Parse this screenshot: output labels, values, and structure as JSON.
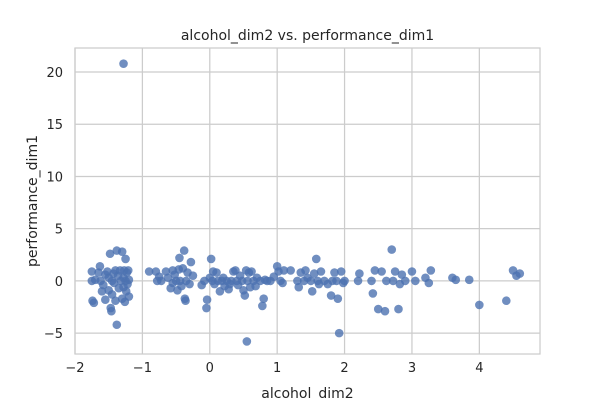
{
  "chart_data": {
    "type": "scatter",
    "title": "alcohol_dim2 vs. performance_dim1",
    "xlabel": "alcohol_dim2",
    "ylabel": "performance_dim1",
    "xlim": [
      -2.0,
      4.9
    ],
    "ylim": [
      -7.0,
      22.3
    ],
    "xticks": [
      -2,
      -1,
      0,
      1,
      2,
      3,
      4
    ],
    "xtick_labels": [
      "−2",
      "−1",
      "0",
      "1",
      "2",
      "3",
      "4"
    ],
    "yticks": [
      -5,
      0,
      5,
      10,
      15,
      20
    ],
    "ytick_labels": [
      "−5",
      "0",
      "5",
      "10",
      "15",
      "20"
    ],
    "grid": true,
    "point_color": "#4c72b0",
    "points": [
      [
        -1.28,
        20.8
      ],
      [
        -1.75,
        0.9
      ],
      [
        -1.75,
        0.0
      ],
      [
        -1.74,
        -1.9
      ],
      [
        -1.72,
        -2.1
      ],
      [
        -1.7,
        0.1
      ],
      [
        -1.65,
        0.8
      ],
      [
        -1.63,
        1.4
      ],
      [
        -1.62,
        0.0
      ],
      [
        -1.6,
        -1.0
      ],
      [
        -1.58,
        -0.4
      ],
      [
        -1.55,
        0.6
      ],
      [
        -1.55,
        -1.8
      ],
      [
        -1.52,
        0.9
      ],
      [
        -1.5,
        0.3
      ],
      [
        -1.5,
        -0.9
      ],
      [
        -1.48,
        2.6
      ],
      [
        -1.47,
        -2.6
      ],
      [
        -1.46,
        -2.9
      ],
      [
        -1.45,
        0.0
      ],
      [
        -1.45,
        -1.3
      ],
      [
        -1.43,
        0.7
      ],
      [
        -1.42,
        -0.2
      ],
      [
        -1.4,
        1.0
      ],
      [
        -1.4,
        -1.9
      ],
      [
        -1.38,
        2.9
      ],
      [
        -1.38,
        -4.2
      ],
      [
        -1.36,
        0.5
      ],
      [
        -1.35,
        -0.7
      ],
      [
        -1.33,
        1.0
      ],
      [
        -1.32,
        0.0
      ],
      [
        -1.3,
        -1.7
      ],
      [
        -1.3,
        2.8
      ],
      [
        -1.28,
        0.3
      ],
      [
        -1.28,
        -0.6
      ],
      [
        -1.27,
        1.0
      ],
      [
        -1.26,
        -2.0
      ],
      [
        -1.25,
        0.0
      ],
      [
        -1.25,
        2.1
      ],
      [
        -1.24,
        -1.0
      ],
      [
        -1.23,
        0.8
      ],
      [
        -1.22,
        -0.3
      ],
      [
        -1.21,
        1.0
      ],
      [
        -1.2,
        -1.5
      ],
      [
        -1.2,
        0.1
      ],
      [
        -0.9,
        0.9
      ],
      [
        -0.8,
        0.9
      ],
      [
        -0.78,
        0.0
      ],
      [
        -0.75,
        0.4
      ],
      [
        -0.72,
        0.0
      ],
      [
        -0.65,
        0.9
      ],
      [
        -0.62,
        0.3
      ],
      [
        -0.58,
        -0.7
      ],
      [
        -0.55,
        1.0
      ],
      [
        -0.55,
        -0.2
      ],
      [
        -0.52,
        0.6
      ],
      [
        -0.5,
        0.0
      ],
      [
        -0.48,
        -0.9
      ],
      [
        -0.46,
        1.1
      ],
      [
        -0.45,
        2.2
      ],
      [
        -0.44,
        0.0
      ],
      [
        -0.42,
        -0.5
      ],
      [
        -0.4,
        1.2
      ],
      [
        -0.38,
        2.9
      ],
      [
        -0.37,
        -1.7
      ],
      [
        -0.36,
        -1.9
      ],
      [
        -0.35,
        0.0
      ],
      [
        -0.33,
        0.8
      ],
      [
        -0.3,
        -0.3
      ],
      [
        -0.28,
        1.8
      ],
      [
        -0.25,
        0.5
      ],
      [
        -0.12,
        -0.4
      ],
      [
        -0.08,
        0.0
      ],
      [
        -0.05,
        -2.6
      ],
      [
        -0.04,
        -1.8
      ],
      [
        0.0,
        0.3
      ],
      [
        0.02,
        2.1
      ],
      [
        0.04,
        0.0
      ],
      [
        0.05,
        0.9
      ],
      [
        0.07,
        -0.3
      ],
      [
        0.1,
        0.8
      ],
      [
        0.12,
        0.0
      ],
      [
        0.15,
        -1.0
      ],
      [
        0.18,
        0.0
      ],
      [
        0.2,
        0.3
      ],
      [
        0.22,
        -0.5
      ],
      [
        0.25,
        0.0
      ],
      [
        0.28,
        -0.8
      ],
      [
        0.3,
        -0.3
      ],
      [
        0.32,
        0.0
      ],
      [
        0.35,
        0.9
      ],
      [
        0.38,
        1.0
      ],
      [
        0.4,
        0.0
      ],
      [
        0.42,
        -0.4
      ],
      [
        0.45,
        0.5
      ],
      [
        0.48,
        0.0
      ],
      [
        0.5,
        -0.9
      ],
      [
        0.52,
        -1.4
      ],
      [
        0.54,
        1.0
      ],
      [
        0.55,
        -5.8
      ],
      [
        0.56,
        0.0
      ],
      [
        0.58,
        0.8
      ],
      [
        0.6,
        -0.6
      ],
      [
        0.62,
        0.9
      ],
      [
        0.65,
        0.0
      ],
      [
        0.68,
        -0.5
      ],
      [
        0.7,
        0.3
      ],
      [
        0.75,
        0.0
      ],
      [
        0.78,
        -2.4
      ],
      [
        0.8,
        -1.7
      ],
      [
        0.82,
        0.1
      ],
      [
        0.85,
        0.0
      ],
      [
        0.9,
        0.0
      ],
      [
        0.95,
        0.4
      ],
      [
        1.0,
        1.4
      ],
      [
        1.02,
        0.9
      ],
      [
        1.05,
        0.0
      ],
      [
        1.08,
        -0.2
      ],
      [
        1.1,
        1.0
      ],
      [
        1.2,
        1.0
      ],
      [
        1.3,
        0.0
      ],
      [
        1.32,
        -0.6
      ],
      [
        1.35,
        0.8
      ],
      [
        1.4,
        0.0
      ],
      [
        1.42,
        1.0
      ],
      [
        1.45,
        0.3
      ],
      [
        1.5,
        0.0
      ],
      [
        1.52,
        -1.0
      ],
      [
        1.55,
        0.7
      ],
      [
        1.58,
        2.1
      ],
      [
        1.6,
        0.0
      ],
      [
        1.62,
        -0.3
      ],
      [
        1.65,
        0.9
      ],
      [
        1.7,
        0.0
      ],
      [
        1.75,
        -0.3
      ],
      [
        1.8,
        -1.4
      ],
      [
        1.82,
        0.0
      ],
      [
        1.85,
        0.8
      ],
      [
        1.88,
        0.0
      ],
      [
        1.9,
        -1.7
      ],
      [
        1.92,
        -5.0
      ],
      [
        1.95,
        0.9
      ],
      [
        1.98,
        -0.2
      ],
      [
        2.0,
        0.0
      ],
      [
        2.2,
        0.0
      ],
      [
        2.22,
        0.7
      ],
      [
        2.4,
        0.0
      ],
      [
        2.42,
        -1.2
      ],
      [
        2.45,
        1.0
      ],
      [
        2.5,
        -2.7
      ],
      [
        2.55,
        0.9
      ],
      [
        2.6,
        -2.9
      ],
      [
        2.62,
        0.0
      ],
      [
        2.7,
        3.0
      ],
      [
        2.72,
        0.0
      ],
      [
        2.75,
        0.9
      ],
      [
        2.8,
        -2.7
      ],
      [
        2.82,
        -0.3
      ],
      [
        2.85,
        0.6
      ],
      [
        2.9,
        0.0
      ],
      [
        3.0,
        0.9
      ],
      [
        3.05,
        0.0
      ],
      [
        3.2,
        0.3
      ],
      [
        3.25,
        -0.2
      ],
      [
        3.28,
        1.0
      ],
      [
        3.6,
        0.3
      ],
      [
        3.65,
        0.1
      ],
      [
        3.85,
        0.1
      ],
      [
        4.0,
        -2.3
      ],
      [
        4.4,
        -1.9
      ],
      [
        4.5,
        1.0
      ],
      [
        4.55,
        0.5
      ],
      [
        4.6,
        0.7
      ]
    ]
  }
}
